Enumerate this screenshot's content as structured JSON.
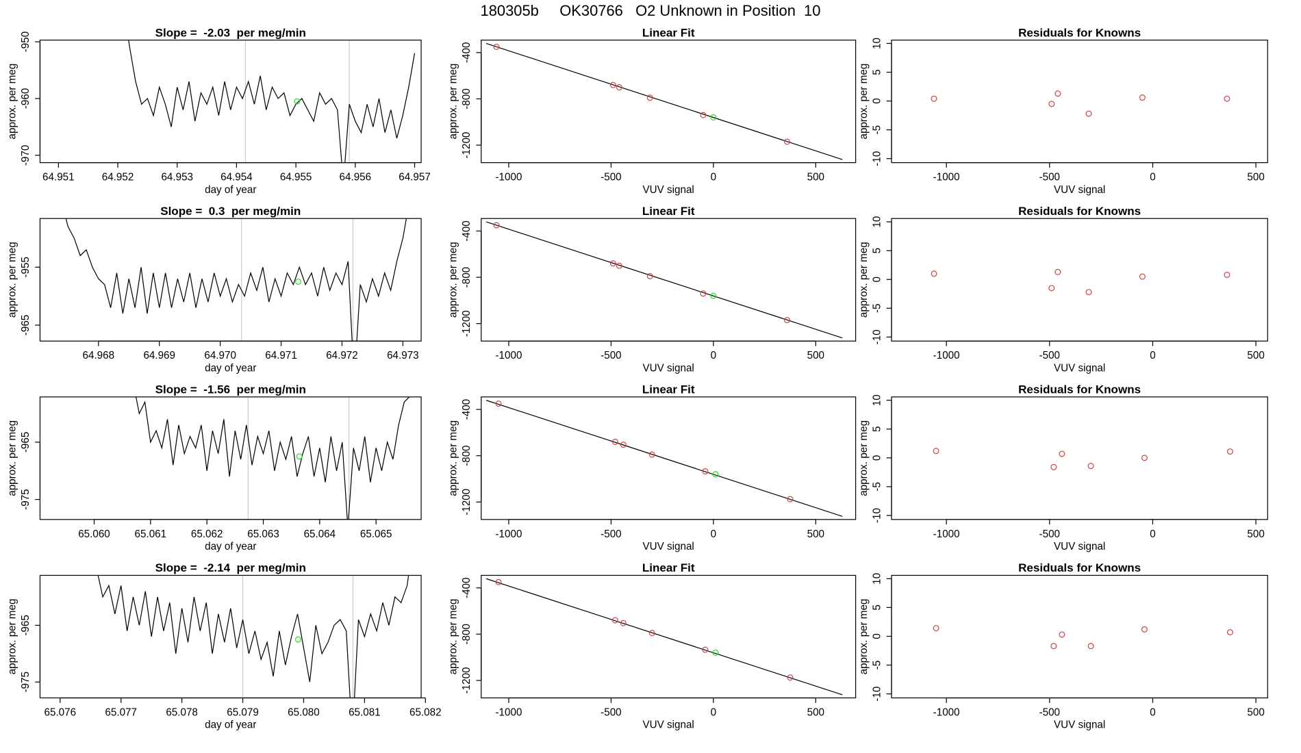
{
  "title": "180305b     OK30766   O2 Unknown in Position  10",
  "chart_data": [
    {
      "type": "line",
      "title": "Slope =  -2.03  per meg/min",
      "xlabel": "day of year",
      "ylabel": "approx. per meg",
      "x": [
        64.9521,
        64.9522,
        64.9523,
        64.9524,
        64.9525,
        64.9526,
        64.9527,
        64.9528,
        64.9529,
        64.953,
        64.9531,
        64.9532,
        64.9533,
        64.9534,
        64.9535,
        64.9536,
        64.9537,
        64.9538,
        64.9539,
        64.954,
        64.9541,
        64.9542,
        64.9543,
        64.9544,
        64.9545,
        64.9546,
        64.9547,
        64.9548,
        64.9549,
        64.955,
        64.9551,
        64.9552,
        64.9553,
        64.9554,
        64.9555,
        64.9556,
        64.9557,
        64.9558,
        64.9559,
        64.956,
        64.9561,
        64.9562,
        64.9563,
        64.9564,
        64.9565,
        64.9566,
        64.9567,
        64.9568,
        64.9569,
        64.957
      ],
      "series": [
        {
          "color": "#000000",
          "values": [
            -944,
            -951,
            -957,
            -961,
            -960,
            -963,
            -958,
            -961,
            -965,
            -958,
            -962,
            -957,
            -964,
            -959,
            -961,
            -958,
            -963,
            -957,
            -962,
            -958,
            -960,
            -957,
            -961,
            -956,
            -962,
            -958,
            -960,
            -959,
            -963,
            -961,
            -960,
            -962,
            -964,
            -959,
            -961,
            -960,
            -962,
            -975,
            -961,
            -964,
            -966,
            -961,
            -965,
            -960,
            -966,
            -962,
            -967,
            -963,
            -958,
            -952
          ]
        }
      ],
      "points": {
        "x": [
          64.95502
        ],
        "y": [
          -960.5
        ],
        "color": "#22dd22"
      },
      "vlines": [
        64.95415,
        64.9559
      ],
      "vline_color": "#cccccc",
      "xlim": [
        64.95069,
        64.95711
      ],
      "ylim": [
        -949.7,
        -971.3
      ],
      "xticks": [
        64.951,
        64.952,
        64.953,
        64.954,
        64.955,
        64.956,
        64.957
      ],
      "yticks": [
        -950,
        -960,
        -970
      ]
    },
    {
      "type": "scatter",
      "title": "Linear Fit",
      "xlabel": "VUV signal",
      "ylabel": "approx. per meg",
      "series": [
        {
          "color": "#cc4444",
          "x": [
            -1060,
            -490,
            -460,
            -310,
            -50,
            360
          ],
          "y": [
            -350,
            -680,
            -700,
            -790,
            -940,
            -1170
          ]
        },
        {
          "color": "#22dd22",
          "x": [
            0
          ],
          "y": [
            -960
          ]
        }
      ],
      "fit": {
        "x": [
          -1110,
          630
        ],
        "y": [
          -321,
          -1324
        ],
        "color": "#000000"
      },
      "xlim": [
        -1134.5,
        695
      ],
      "ylim": [
        -292,
        -1351
      ],
      "xticks": [
        -1000,
        -500,
        0,
        500
      ],
      "yticks": [
        -400,
        -800,
        -1200
      ]
    },
    {
      "type": "scatter",
      "title": "Residuals for Knowns",
      "xlabel": "VUV signal",
      "ylabel": "approx. per meg",
      "series": [
        {
          "color": "#cc4444",
          "x": [
            -1060,
            -490,
            -460,
            -310,
            -50,
            360
          ],
          "y": [
            0.4,
            -0.5,
            1.3,
            -2.2,
            0.6,
            0.4
          ]
        }
      ],
      "xlim": [
        -1266,
        557
      ],
      "ylim": [
        10.58,
        -10.7
      ],
      "xticks": [
        -1000,
        -500,
        0,
        500
      ],
      "yticks": [
        -10,
        -5,
        0,
        5,
        10
      ]
    },
    {
      "type": "line",
      "title": "Slope =  0.3  per meg/min",
      "xlabel": "day of year",
      "ylabel": "approx. per meg",
      "x": [
        64.9674,
        64.9675,
        64.9676,
        64.9677,
        64.9678,
        64.9679,
        64.968,
        64.9681,
        64.9682,
        64.9683,
        64.9684,
        64.9685,
        64.9686,
        64.9687,
        64.9688,
        64.9689,
        64.969,
        64.9691,
        64.9692,
        64.9693,
        64.9694,
        64.9695,
        64.9696,
        64.9697,
        64.9698,
        64.9699,
        64.97,
        64.9701,
        64.9702,
        64.9703,
        64.9704,
        64.9705,
        64.9706,
        64.9707,
        64.9708,
        64.9709,
        64.971,
        64.9711,
        64.9712,
        64.9713,
        64.9714,
        64.9715,
        64.9716,
        64.9717,
        64.9718,
        64.9719,
        64.972,
        64.9721,
        64.9722,
        64.9723,
        64.9724,
        64.9725,
        64.9726,
        64.9727,
        64.9728,
        64.9729,
        64.973,
        64.9731
      ],
      "series": [
        {
          "color": "#000000",
          "values": [
            -944,
            -948,
            -950,
            -953,
            -952,
            -955,
            -957,
            -958,
            -962,
            -956,
            -963,
            -957,
            -962,
            -955,
            -963,
            -956,
            -962,
            -956,
            -962,
            -957,
            -961,
            -956,
            -962,
            -957,
            -961,
            -956,
            -960,
            -957,
            -961,
            -958,
            -960,
            -956,
            -959,
            -955,
            -961,
            -957,
            -960,
            -956,
            -958,
            -955,
            -958,
            -956,
            -960,
            -955,
            -959,
            -956,
            -958,
            -954,
            -975,
            -958,
            -961,
            -957,
            -960,
            -956,
            -959,
            -954,
            -950,
            -944
          ]
        }
      ],
      "points": {
        "x": [
          64.97128
        ],
        "y": [
          -957.5
        ],
        "color": "#22dd22"
      },
      "vlines": [
        64.97035,
        64.97218
      ],
      "vline_color": "#cccccc",
      "xlim": [
        64.96704,
        64.9733
      ],
      "ylim": [
        -946.6,
        -967.75
      ],
      "xticks": [
        64.968,
        64.969,
        {
          "value": 64.97,
          "label": "64.970"
        },
        64.971,
        64.972,
        64.973
      ],
      "yticks": [
        -955,
        -965
      ]
    },
    {
      "type": "scatter",
      "title": "Linear Fit",
      "xlabel": "VUV signal",
      "ylabel": "approx. per meg",
      "series": [
        {
          "color": "#cc4444",
          "x": [
            -1060,
            -490,
            -460,
            -310,
            -50,
            360
          ],
          "y": [
            -350,
            -680,
            -700,
            -790,
            -940,
            -1170
          ]
        },
        {
          "color": "#22dd22",
          "x": [
            0
          ],
          "y": [
            -960
          ]
        }
      ],
      "fit": {
        "x": [
          -1110,
          630
        ],
        "y": [
          -321,
          -1324
        ],
        "color": "#000000"
      },
      "xlim": [
        -1134.5,
        695
      ],
      "ylim": [
        -292,
        -1351
      ],
      "xticks": [
        -1000,
        -500,
        0,
        500
      ],
      "yticks": [
        -400,
        -800,
        -1200
      ]
    },
    {
      "type": "scatter",
      "title": "Residuals for Knowns",
      "xlabel": "VUV signal",
      "ylabel": "approx. per meg",
      "series": [
        {
          "color": "#cc4444",
          "x": [
            -1060,
            -490,
            -460,
            -310,
            -50,
            360
          ],
          "y": [
            1.0,
            -1.5,
            1.3,
            -2.2,
            0.5,
            0.8
          ]
        }
      ],
      "xlim": [
        -1266,
        557
      ],
      "ylim": [
        10.58,
        -10.7
      ],
      "xticks": [
        -1000,
        -500,
        0,
        500
      ],
      "yticks": [
        -10,
        -5,
        0,
        5,
        10
      ]
    },
    {
      "type": "line",
      "title": "Slope =  -1.56  per meg/min",
      "xlabel": "day of year",
      "ylabel": "approx. per meg",
      "x": [
        65.0607,
        65.0608,
        65.0609,
        65.061,
        65.0611,
        65.0612,
        65.0613,
        65.0614,
        65.0615,
        65.0616,
        65.0617,
        65.0618,
        65.0619,
        65.062,
        65.0621,
        65.0622,
        65.0623,
        65.0624,
        65.0625,
        65.0626,
        65.0627,
        65.0628,
        65.0629,
        65.063,
        65.0631,
        65.0632,
        65.0633,
        65.0634,
        65.0635,
        65.0636,
        65.0637,
        65.0638,
        65.0639,
        65.064,
        65.0641,
        65.0642,
        65.0643,
        65.0644,
        65.0645,
        65.0646,
        65.0647,
        65.0648,
        65.0649,
        65.065,
        65.0651,
        65.0652,
        65.0653,
        65.0654,
        65.0655,
        65.0656
      ],
      "series": [
        {
          "color": "#000000",
          "values": [
            -955,
            -960,
            -958,
            -965,
            -963,
            -966,
            -961,
            -969,
            -962,
            -967,
            -964,
            -966,
            -962,
            -970,
            -963,
            -967,
            -961,
            -971,
            -963,
            -968,
            -962,
            -969,
            -964,
            -967,
            -963,
            -970,
            -965,
            -968,
            -964,
            -971,
            -967,
            -964,
            -971,
            -966,
            -972,
            -964,
            -970,
            -965,
            -980,
            -966,
            -970,
            -964,
            -972,
            -966,
            -970,
            -965,
            -968,
            -962,
            -958,
            -957
          ]
        }
      ],
      "points": {
        "x": [
          65.06364
        ],
        "y": [
          -967.5
        ],
        "color": "#22dd22"
      },
      "vlines": [
        65.06273,
        65.06452
      ],
      "vline_color": "#cccccc",
      "xlim": [
        65.05904,
        65.0658
      ],
      "ylim": [
        -957.1,
        -978.5
      ],
      "xticks": [
        {
          "value": 65.06,
          "label": "65.060"
        },
        65.061,
        65.062,
        65.063,
        65.064,
        65.065
      ],
      "yticks": [
        -965,
        -975
      ]
    },
    {
      "type": "scatter",
      "title": "Linear Fit",
      "xlabel": "VUV signal",
      "ylabel": "approx. per meg",
      "series": [
        {
          "color": "#cc4444",
          "x": [
            -1050,
            -480,
            -440,
            -300,
            -40,
            375
          ],
          "y": [
            -350,
            -680,
            -705,
            -790,
            -935,
            -1175
          ]
        },
        {
          "color": "#22dd22",
          "x": [
            10
          ],
          "y": [
            -960
          ]
        }
      ],
      "fit": {
        "x": [
          -1110,
          630
        ],
        "y": [
          -321,
          -1324
        ],
        "color": "#000000"
      },
      "xlim": [
        -1134.5,
        695
      ],
      "ylim": [
        -292,
        -1351
      ],
      "xticks": [
        -1000,
        -500,
        0,
        500
      ],
      "yticks": [
        -400,
        -800,
        -1200
      ]
    },
    {
      "type": "scatter",
      "title": "Residuals for Knowns",
      "xlabel": "VUV signal",
      "ylabel": "approx. per meg",
      "series": [
        {
          "color": "#cc4444",
          "x": [
            -1050,
            -480,
            -440,
            -300,
            -40,
            375
          ],
          "y": [
            1.2,
            -1.6,
            0.7,
            -1.4,
            0,
            1.1
          ]
        }
      ],
      "xlim": [
        -1266,
        557
      ],
      "ylim": [
        10.58,
        -10.7
      ],
      "xticks": [
        -1000,
        -500,
        0,
        500
      ],
      "yticks": [
        -10,
        -5,
        0,
        5,
        10
      ]
    },
    {
      "type": "line",
      "title": "Slope =  -2.14  per meg/min",
      "xlabel": "day of year",
      "ylabel": "approx. per meg",
      "x": [
        65.0766,
        65.0767,
        65.0768,
        65.0769,
        65.077,
        65.0771,
        65.0772,
        65.0773,
        65.0774,
        65.0775,
        65.0776,
        65.0777,
        65.0778,
        65.0779,
        65.078,
        65.0781,
        65.0782,
        65.0783,
        65.0784,
        65.0785,
        65.0786,
        65.0787,
        65.0788,
        65.0789,
        65.079,
        65.0791,
        65.0792,
        65.0793,
        65.0794,
        65.0795,
        65.0796,
        65.0797,
        65.0798,
        65.0799,
        65.08,
        65.0801,
        65.0802,
        65.0803,
        65.0804,
        65.0805,
        65.0806,
        65.0807,
        65.0808,
        65.0809,
        65.081,
        65.0811,
        65.0812,
        65.0813,
        65.0814,
        65.0815,
        65.0816,
        65.0817,
        65.0818
      ],
      "series": [
        {
          "color": "#000000",
          "values": [
            -955,
            -960,
            -958,
            -963,
            -958,
            -966,
            -960,
            -965,
            -959,
            -967,
            -960,
            -966,
            -961,
            -970,
            -962,
            -968,
            -960,
            -966,
            -961,
            -970,
            -963,
            -968,
            -962,
            -969,
            -964,
            -970,
            -966,
            -971,
            -968,
            -974,
            -966,
            -972,
            -967,
            -963,
            -969,
            -975,
            -965,
            -970,
            -968,
            -965,
            -964,
            -966,
            -985,
            -964,
            -967,
            -963,
            -966,
            -961,
            -965,
            -960,
            -961,
            -958,
            -950
          ]
        }
      ],
      "points": {
        "x": [
          65.07991
        ],
        "y": [
          -967.5
        ],
        "color": "#22dd22"
      },
      "vlines": [
        65.079,
        65.08081
      ],
      "vline_color": "#cccccc",
      "xlim": [
        65.07567,
        65.08193
      ],
      "ylim": [
        -956.2,
        -977.8
      ],
      "xticks": [
        65.076,
        65.077,
        65.078,
        65.079,
        {
          "value": 65.08,
          "label": "65.080"
        },
        65.081,
        65.082
      ],
      "yticks": [
        -965,
        -975
      ]
    },
    {
      "type": "scatter",
      "title": "Linear Fit",
      "xlabel": "VUV signal",
      "ylabel": "approx. per meg",
      "series": [
        {
          "color": "#cc4444",
          "x": [
            -1050,
            -480,
            -440,
            -300,
            -40,
            375
          ],
          "y": [
            -350,
            -680,
            -705,
            -790,
            -935,
            -1175
          ]
        },
        {
          "color": "#22dd22",
          "x": [
            10
          ],
          "y": [
            -960
          ]
        }
      ],
      "fit": {
        "x": [
          -1110,
          630
        ],
        "y": [
          -321,
          -1324
        ],
        "color": "#000000"
      },
      "xlim": [
        -1134.5,
        695
      ],
      "ylim": [
        -292,
        -1351
      ],
      "xticks": [
        -1000,
        -500,
        0,
        500
      ],
      "yticks": [
        -400,
        -800,
        -1200
      ]
    },
    {
      "type": "scatter",
      "title": "Residuals for Knowns",
      "xlabel": "VUV signal",
      "ylabel": "approx. per meg",
      "series": [
        {
          "color": "#cc4444",
          "x": [
            -1050,
            -480,
            -440,
            -300,
            -40,
            375
          ],
          "y": [
            1.4,
            -1.7,
            0.3,
            -1.7,
            1.2,
            0.7
          ]
        }
      ],
      "xlim": [
        -1266,
        557
      ],
      "ylim": [
        10.58,
        -10.7
      ],
      "xticks": [
        -1000,
        -500,
        0,
        500
      ],
      "yticks": [
        -10,
        -5,
        0,
        5,
        10
      ]
    }
  ]
}
